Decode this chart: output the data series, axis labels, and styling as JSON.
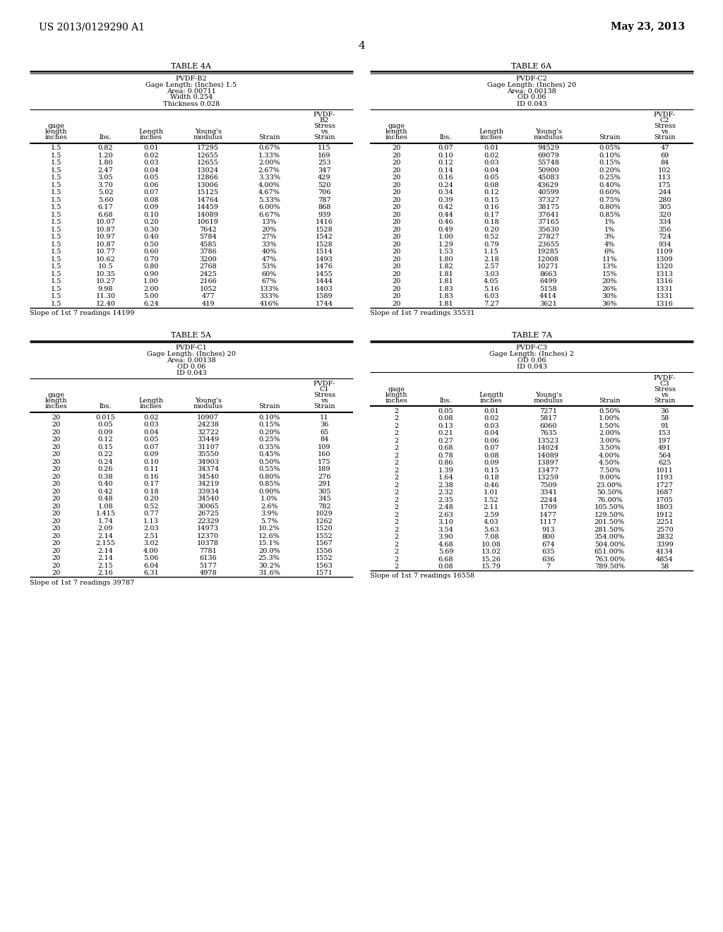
{
  "header_left": "US 2013/0129290 A1",
  "header_right": "May 23, 2013",
  "page_num": "4",
  "table4a_title": "TABLE 4A",
  "table4a_info": [
    "PVDF-B2",
    "Gage Length: (Inches) 1.5",
    "Area: 0.00711",
    "Width 0.254",
    "Thickness 0.028"
  ],
  "table4a_col_headers": [
    "gage\nlength\ninches",
    "lbs.",
    "Length\ninches",
    "Young's\nmodulus",
    "Strain",
    "PVDF-\nB2\nStress\nvs\nStrain"
  ],
  "table4a_data": [
    [
      "1.5",
      "0.82",
      "0.01",
      "17295",
      "0.67%",
      "115"
    ],
    [
      "1.5",
      "1.20",
      "0.02",
      "12655",
      "1.33%",
      "169"
    ],
    [
      "1.5",
      "1.80",
      "0.03",
      "12655",
      "2.00%",
      "253"
    ],
    [
      "1.5",
      "2.47",
      "0.04",
      "13024",
      "2.67%",
      "347"
    ],
    [
      "1.5",
      "3.05",
      "0.05",
      "12866",
      "3.33%",
      "429"
    ],
    [
      "1.5",
      "3.70",
      "0.06",
      "13006",
      "4.00%",
      "520"
    ],
    [
      "1.5",
      "5.02",
      "0.07",
      "15125",
      "4.67%",
      "706"
    ],
    [
      "1.5",
      "5.60",
      "0.08",
      "14764",
      "5.33%",
      "787"
    ],
    [
      "1.5",
      "6.17",
      "0.09",
      "14459",
      "6.00%",
      "868"
    ],
    [
      "1.5",
      "6.68",
      "0.10",
      "14089",
      "6.67%",
      "939"
    ],
    [
      "1.5",
      "10.07",
      "0.20",
      "10619",
      "13%",
      "1416"
    ],
    [
      "1.5",
      "10.87",
      "0.30",
      "7642",
      "20%",
      "1528"
    ],
    [
      "1.5",
      "10.97",
      "0.40",
      "5784",
      "27%",
      "1542"
    ],
    [
      "1.5",
      "10.87",
      "0.50",
      "4585",
      "33%",
      "1528"
    ],
    [
      "1.5",
      "10.77",
      "0.60",
      "3786",
      "40%",
      "1514"
    ],
    [
      "1.5",
      "10.62",
      "0.70",
      "3200",
      "47%",
      "1493"
    ],
    [
      "1.5",
      "10.5",
      "0.80",
      "2768",
      "53%",
      "1476"
    ],
    [
      "1.5",
      "10.35",
      "0.90",
      "2425",
      "60%",
      "1455"
    ],
    [
      "1.5",
      "10.27",
      "1.00",
      "2166",
      "67%",
      "1444"
    ],
    [
      "1.5",
      "9.98",
      "2.00",
      "1052",
      "133%",
      "1403"
    ],
    [
      "1.5",
      "11.30",
      "5.00",
      "477",
      "333%",
      "1589"
    ],
    [
      "1.5",
      "12.40",
      "6.24",
      "419",
      "416%",
      "1744"
    ]
  ],
  "table4a_footer": "Slope of 1st 7 readings 14199",
  "table6a_title": "TABLE 6A",
  "table6a_info": [
    "PVDF-C2",
    "Gage Length: (Inches) 20",
    "Area: 0.00138",
    "OD 0.06",
    "ID 0.043"
  ],
  "table6a_col_headers": [
    "gage\nlength\ninches",
    "lbs.",
    "Length\ninches",
    "Young's\nmodulus",
    "Strain",
    "PVDF-\nC2\nStress\nvs\nStrain"
  ],
  "table6a_data": [
    [
      "20",
      "0.07",
      "0.01",
      "94529",
      "0.05%",
      "47"
    ],
    [
      "20",
      "0.10",
      "0.02",
      "69079",
      "0.10%",
      "69"
    ],
    [
      "20",
      "0.12",
      "0.03",
      "55748",
      "0.15%",
      "84"
    ],
    [
      "20",
      "0.14",
      "0.04",
      "50900",
      "0.20%",
      "102"
    ],
    [
      "20",
      "0.16",
      "0.05",
      "45083",
      "0.25%",
      "113"
    ],
    [
      "20",
      "0.24",
      "0.08",
      "43629",
      "0.40%",
      "175"
    ],
    [
      "20",
      "0.34",
      "0.12",
      "40599",
      "0.60%",
      "244"
    ],
    [
      "20",
      "0.39",
      "0.15",
      "37327",
      "0.75%",
      "280"
    ],
    [
      "20",
      "0.42",
      "0.16",
      "38175",
      "0.80%",
      "305"
    ],
    [
      "20",
      "0.44",
      "0.17",
      "37641",
      "0.85%",
      "320"
    ],
    [
      "20",
      "0.46",
      "0.18",
      "37165",
      "1%",
      "334"
    ],
    [
      "20",
      "0.49",
      "0.20",
      "35630",
      "1%",
      "356"
    ],
    [
      "20",
      "1.00",
      "0.52",
      "27827",
      "3%",
      "724"
    ],
    [
      "20",
      "1.29",
      "0.79",
      "23655",
      "4%",
      "934"
    ],
    [
      "20",
      "1.53",
      "1.15",
      "19285",
      "6%",
      "1109"
    ],
    [
      "20",
      "1.80",
      "2.18",
      "12008",
      "11%",
      "1309"
    ],
    [
      "20",
      "1.82",
      "2.57",
      "10271",
      "13%",
      "1320"
    ],
    [
      "20",
      "1.81",
      "3.03",
      "8663",
      "15%",
      "1313"
    ],
    [
      "20",
      "1.81",
      "4.05",
      "6499",
      "20%",
      "1316"
    ],
    [
      "20",
      "1.83",
      "5.16",
      "5158",
      "26%",
      "1331"
    ],
    [
      "20",
      "1.83",
      "6.03",
      "4414",
      "30%",
      "1331"
    ],
    [
      "20",
      "1.81",
      "7.27",
      "3621",
      "36%",
      "1316"
    ]
  ],
  "table6a_footer": "Slope of 1st 7 readings 35531",
  "table5a_title": "TABLE 5A",
  "table5a_info": [
    "PVDF-C1",
    "Gage Length: (Inches) 20",
    "Area: 0.00138",
    "OD 0.06",
    "ID 0.043"
  ],
  "table5a_col_headers": [
    "gage\nlength\ninches",
    "lbs.",
    "Length\ninches",
    "Young's\nmodulus",
    "Strain",
    "PVDF-\nC1\nStress\nvs\nStrain"
  ],
  "table5a_data": [
    [
      "20",
      "0.015",
      "0.02",
      "10907",
      "0.10%",
      "11"
    ],
    [
      "20",
      "0.05",
      "0.03",
      "24238",
      "0.15%",
      "36"
    ],
    [
      "20",
      "0.09",
      "0.04",
      "32722",
      "0.20%",
      "65"
    ],
    [
      "20",
      "0.12",
      "0.05",
      "33449",
      "0.25%",
      "84"
    ],
    [
      "20",
      "0.15",
      "0.07",
      "31107",
      "0.35%",
      "109"
    ],
    [
      "20",
      "0.22",
      "0.09",
      "35550",
      "0.45%",
      "160"
    ],
    [
      "20",
      "0.24",
      "0.10",
      "34903",
      "0.50%",
      "175"
    ],
    [
      "20",
      "0.26",
      "0.11",
      "34374",
      "0.55%",
      "189"
    ],
    [
      "20",
      "0.38",
      "0.16",
      "34540",
      "0.80%",
      "276"
    ],
    [
      "20",
      "0.40",
      "0.17",
      "34219",
      "0.85%",
      "291"
    ],
    [
      "20",
      "0.42",
      "0.18",
      "33934",
      "0.90%",
      "305"
    ],
    [
      "20",
      "0.48",
      "0.20",
      "34540",
      "1.0%",
      "345"
    ],
    [
      "20",
      "1.08",
      "0.52",
      "30065",
      "2.6%",
      "782"
    ],
    [
      "20",
      "1.415",
      "0.77",
      "26725",
      "3.9%",
      "1029"
    ],
    [
      "20",
      "1.74",
      "1.13",
      "22329",
      "5.7%",
      "1262"
    ],
    [
      "20",
      "2.09",
      "2.03",
      "14973",
      "10.2%",
      "1520"
    ],
    [
      "20",
      "2.14",
      "2.51",
      "12370",
      "12.6%",
      "1552"
    ],
    [
      "20",
      "2.155",
      "3.02",
      "10378",
      "15.1%",
      "1567"
    ],
    [
      "20",
      "2.14",
      "4.00",
      "7781",
      "20.0%",
      "1556"
    ],
    [
      "20",
      "2.14",
      "5.06",
      "6136",
      "25.3%",
      "1552"
    ],
    [
      "20",
      "2.15",
      "6.04",
      "5177",
      "30.2%",
      "1563"
    ],
    [
      "20",
      "2.16",
      "6.31",
      "4978",
      "31.6%",
      "1571"
    ]
  ],
  "table5a_footer": "Slope of 1st 7 readings 39787",
  "table7a_title": "TABLE 7A",
  "table7a_info": [
    "PVDF-C3",
    "Gage Length: (Inches) 2",
    "OD 0.06",
    "ID 0.043"
  ],
  "table7a_col_headers": [
    "gage\nlength\ninches",
    "lbs.",
    "Length\ninches",
    "Young's\nmodulus",
    "Strain",
    "PVDF-\nC3\nStress\nvs\nStrain"
  ],
  "table7a_data": [
    [
      "2",
      "0.05",
      "0.01",
      "7271",
      "0.50%",
      "36"
    ],
    [
      "2",
      "0.08",
      "0.02",
      "5817",
      "1.00%",
      "58"
    ],
    [
      "2",
      "0.13",
      "0.03",
      "6060",
      "1.50%",
      "91"
    ],
    [
      "2",
      "0.21",
      "0.04",
      "7635",
      "2.00%",
      "153"
    ],
    [
      "2",
      "0.27",
      "0.06",
      "13523",
      "3.00%",
      "197"
    ],
    [
      "2",
      "0.68",
      "0.07",
      "14024",
      "3.50%",
      "491"
    ],
    [
      "2",
      "0.78",
      "0.08",
      "14089",
      "4.00%",
      "564"
    ],
    [
      "2",
      "0.86",
      "0.09",
      "13897",
      "4.50%",
      "625"
    ],
    [
      "2",
      "1.39",
      "0.15",
      "13477",
      "7.50%",
      "1011"
    ],
    [
      "2",
      "1.64",
      "0.18",
      "13259",
      "9.00%",
      "1193"
    ],
    [
      "2",
      "2.38",
      "0.46",
      "7509",
      "23.00%",
      "1727"
    ],
    [
      "2",
      "2.32",
      "1.01",
      "3341",
      "50.50%",
      "1687"
    ],
    [
      "2",
      "2.35",
      "1.52",
      "2244",
      "76.00%",
      "1705"
    ],
    [
      "2",
      "2.48",
      "2.11",
      "1709",
      "105.50%",
      "1803"
    ],
    [
      "2",
      "2.63",
      "2.59",
      "1477",
      "129.50%",
      "1912"
    ],
    [
      "2",
      "3.10",
      "4.03",
      "1117",
      "201.50%",
      "2251"
    ],
    [
      "2",
      "3.54",
      "5.63",
      "913",
      "281.50%",
      "2570"
    ],
    [
      "2",
      "3.90",
      "7.08",
      "800",
      "354.00%",
      "2832"
    ],
    [
      "2",
      "4.68",
      "10.08",
      "674",
      "504.00%",
      "3399"
    ],
    [
      "2",
      "5.69",
      "13.02",
      "635",
      "651.00%",
      "4134"
    ],
    [
      "2",
      "6.68",
      "15.26",
      "636",
      "763.00%",
      "4854"
    ],
    [
      "2",
      "0.08",
      "15.79",
      "7",
      "789.50%",
      "58"
    ]
  ],
  "table7a_footer": "Slope of 1st 7 readings 16558"
}
